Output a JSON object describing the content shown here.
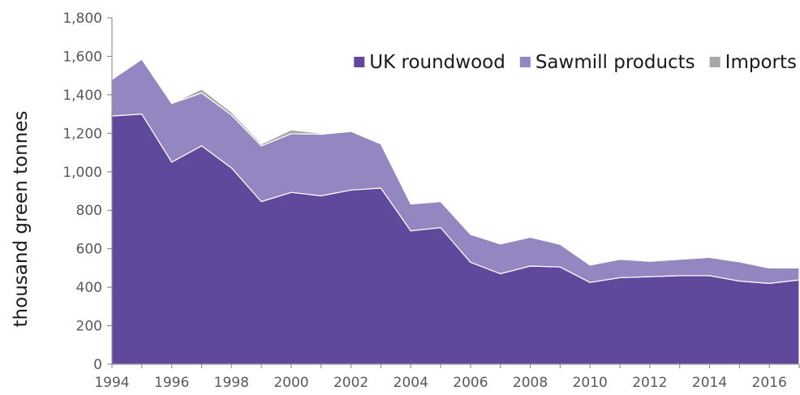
{
  "chart_data": {
    "type": "area",
    "stacked": true,
    "ylabel": "thousand green tonnes",
    "xlabel": "",
    "ylim": [
      0,
      1800
    ],
    "xlim": [
      1994,
      2017
    ],
    "y_ticks": [
      "0",
      "200",
      "400",
      "600",
      "800",
      "1,000",
      "1,200",
      "1,400",
      "1,600",
      "1,800"
    ],
    "x_ticks": [
      "1994",
      "1996",
      "1998",
      "2000",
      "2002",
      "2004",
      "2006",
      "2008",
      "2010",
      "2012",
      "2014",
      "2016"
    ],
    "x": [
      1994,
      1995,
      1996,
      1997,
      1998,
      1999,
      2000,
      2001,
      2002,
      2003,
      2004,
      2005,
      2006,
      2007,
      2008,
      2009,
      2010,
      2011,
      2012,
      2013,
      2014,
      2015,
      2016,
      2017
    ],
    "grid": false,
    "legend_position": "top-right",
    "series": [
      {
        "name": "UK roundwood",
        "color": "#60499c",
        "values": [
          1290,
          1300,
          1050,
          1135,
          1020,
          845,
          893,
          875,
          905,
          915,
          693,
          710,
          530,
          470,
          510,
          505,
          425,
          450,
          455,
          460,
          460,
          432,
          420,
          438
        ]
      },
      {
        "name": "Sawmill products",
        "color": "#9486c0",
        "values": [
          190,
          285,
          305,
          275,
          275,
          290,
          305,
          320,
          305,
          230,
          140,
          135,
          145,
          155,
          150,
          118,
          90,
          95,
          80,
          85,
          95,
          100,
          80,
          62
        ]
      },
      {
        "name": "Imports",
        "color": "#a6a6a6",
        "values": [
          0,
          0,
          0,
          20,
          15,
          10,
          20,
          5,
          0,
          0,
          0,
          0,
          0,
          0,
          0,
          0,
          0,
          0,
          0,
          0,
          0,
          0,
          0,
          0
        ]
      }
    ]
  }
}
